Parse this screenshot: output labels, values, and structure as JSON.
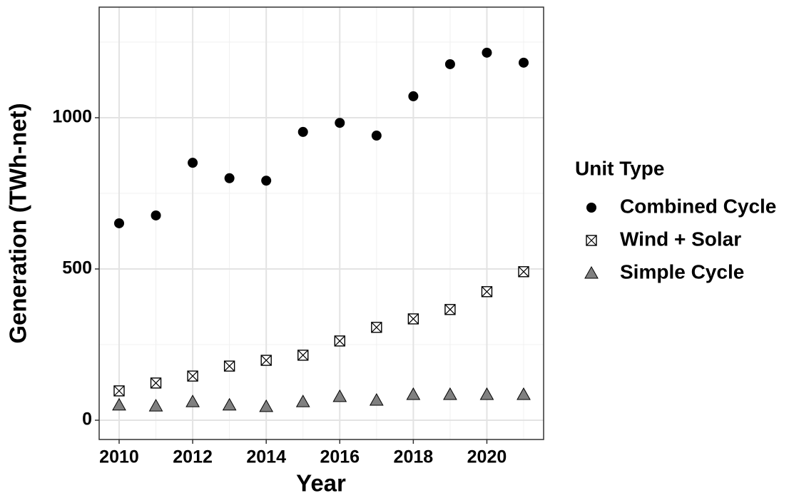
{
  "chart_data": {
    "type": "scatter",
    "x_label": "Year",
    "y_label": "Generation (TWh-net)",
    "legend_title": "Unit Type",
    "legend": "right",
    "x": [
      2010,
      2011,
      2012,
      2013,
      2014,
      2015,
      2016,
      2017,
      2018,
      2019,
      2020,
      2021
    ],
    "series": [
      {
        "name": "Combined Cycle",
        "color": "#000000",
        "marker": "circle",
        "values": [
          651,
          677,
          851,
          800,
          792,
          953,
          983,
          941,
          1071,
          1177,
          1215,
          1182
        ]
      },
      {
        "name": "Wind + Solar",
        "color": "#ffffff",
        "marker": "square-x",
        "values": [
          97,
          123,
          146,
          179,
          198,
          215,
          262,
          307,
          335,
          366,
          425,
          491
        ]
      },
      {
        "name": "Simple Cycle",
        "color": "#808080",
        "marker": "triangle",
        "values": [
          50,
          47,
          61,
          50,
          45,
          61,
          78,
          66,
          85,
          85,
          85,
          85
        ]
      }
    ],
    "xlim": [
      2009.457,
      2021.543
    ],
    "ylim": [
      -63.7,
      1365.6
    ],
    "xticks": [
      2010,
      2012,
      2014,
      2016,
      2018,
      2020
    ],
    "yticks": [
      0,
      500,
      1000
    ],
    "xminor": [
      2011,
      2013,
      2015,
      2017,
      2019,
      2021
    ],
    "yminor": [
      250,
      750,
      1250
    ],
    "grid": true
  }
}
